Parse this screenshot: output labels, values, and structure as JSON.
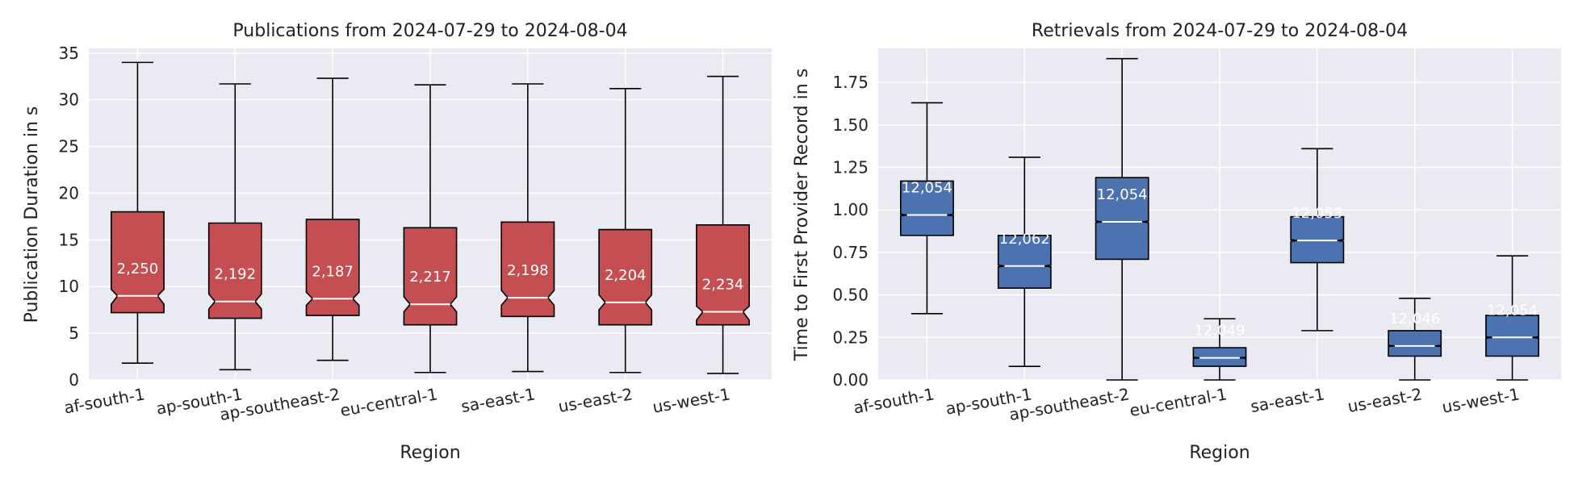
{
  "chart_data": [
    {
      "type": "boxplot",
      "title": "Publications from 2024-07-29 to 2024-08-04",
      "xlabel": "Region",
      "ylabel": "Publication Duration in s",
      "ylim": [
        0,
        35.5
      ],
      "yticks": [
        0,
        5,
        10,
        15,
        20,
        25,
        30,
        35
      ],
      "ytick_labels": [
        "0",
        "5",
        "10",
        "15",
        "20",
        "25",
        "30",
        "35"
      ],
      "grid": true,
      "notched": true,
      "box_color": "#c44e52",
      "median_color": "#ffffff",
      "categories": [
        "af-south-1",
        "ap-south-1",
        "ap-southeast-2",
        "eu-central-1",
        "sa-east-1",
        "us-east-2",
        "us-west-1"
      ],
      "boxes": [
        {
          "whislo": 1.8,
          "q1": 7.2,
          "med": 9.0,
          "q3": 18.0,
          "whishi": 34.0,
          "ci_lo": 8.1,
          "ci_hi": 9.7,
          "count": "2,250"
        },
        {
          "whislo": 1.1,
          "q1": 6.6,
          "med": 8.4,
          "q3": 16.8,
          "whishi": 31.7,
          "ci_lo": 7.6,
          "ci_hi": 9.2,
          "count": "2,192"
        },
        {
          "whislo": 2.1,
          "q1": 6.9,
          "med": 8.7,
          "q3": 17.2,
          "whishi": 32.3,
          "ci_lo": 8.0,
          "ci_hi": 9.4,
          "count": "2,187"
        },
        {
          "whislo": 0.8,
          "q1": 5.9,
          "med": 8.1,
          "q3": 16.3,
          "whishi": 31.6,
          "ci_lo": 7.3,
          "ci_hi": 8.9,
          "count": "2,217"
        },
        {
          "whislo": 0.9,
          "q1": 6.8,
          "med": 8.8,
          "q3": 16.9,
          "whishi": 31.7,
          "ci_lo": 8.0,
          "ci_hi": 9.6,
          "count": "2,198"
        },
        {
          "whislo": 0.8,
          "q1": 5.9,
          "med": 8.3,
          "q3": 16.1,
          "whishi": 31.2,
          "ci_lo": 7.5,
          "ci_hi": 9.1,
          "count": "2,204"
        },
        {
          "whislo": 0.7,
          "q1": 5.9,
          "med": 7.3,
          "q3": 16.6,
          "whishi": 32.5,
          "ci_lo": 6.4,
          "ci_hi": 7.9,
          "count": "2,234"
        }
      ]
    },
    {
      "type": "boxplot",
      "title": "Retrievals from 2024-07-29 to 2024-08-04",
      "xlabel": "Region",
      "ylabel": "Time to First Provider Record in s",
      "ylim": [
        0,
        1.95
      ],
      "yticks": [
        0,
        0.25,
        0.5,
        0.75,
        1.0,
        1.25,
        1.5,
        1.75
      ],
      "ytick_labels": [
        "0.00",
        "0.25",
        "0.50",
        "0.75",
        "1.00",
        "1.25",
        "1.50",
        "1.75"
      ],
      "grid": true,
      "notched": true,
      "box_color": "#4c72b0",
      "median_color": "#ffffff",
      "categories": [
        "af-south-1",
        "ap-south-1",
        "ap-southeast-2",
        "eu-central-1",
        "sa-east-1",
        "us-east-2",
        "us-west-1"
      ],
      "boxes": [
        {
          "whislo": 0.39,
          "q1": 0.85,
          "med": 0.97,
          "q3": 1.17,
          "whishi": 1.63,
          "ci_lo": 0.965,
          "ci_hi": 0.975,
          "count": "12,054"
        },
        {
          "whislo": 0.08,
          "q1": 0.54,
          "med": 0.67,
          "q3": 0.85,
          "whishi": 1.31,
          "ci_lo": 0.665,
          "ci_hi": 0.675,
          "count": "12,062"
        },
        {
          "whislo": 0.0,
          "q1": 0.71,
          "med": 0.93,
          "q3": 1.19,
          "whishi": 1.89,
          "ci_lo": 0.925,
          "ci_hi": 0.935,
          "count": "12,054"
        },
        {
          "whislo": 0.0,
          "q1": 0.08,
          "med": 0.13,
          "q3": 0.19,
          "whishi": 0.36,
          "ci_lo": 0.127,
          "ci_hi": 0.133,
          "count": "12,049"
        },
        {
          "whislo": 0.29,
          "q1": 0.69,
          "med": 0.82,
          "q3": 0.96,
          "whishi": 1.36,
          "ci_lo": 0.815,
          "ci_hi": 0.825,
          "count": "12,053"
        },
        {
          "whislo": 0.0,
          "q1": 0.14,
          "med": 0.2,
          "q3": 0.29,
          "whishi": 0.48,
          "ci_lo": 0.197,
          "ci_hi": 0.203,
          "count": "12,046"
        },
        {
          "whislo": 0.0,
          "q1": 0.14,
          "med": 0.25,
          "q3": 0.38,
          "whishi": 0.73,
          "ci_lo": 0.246,
          "ci_hi": 0.254,
          "count": "12,054"
        }
      ]
    }
  ]
}
